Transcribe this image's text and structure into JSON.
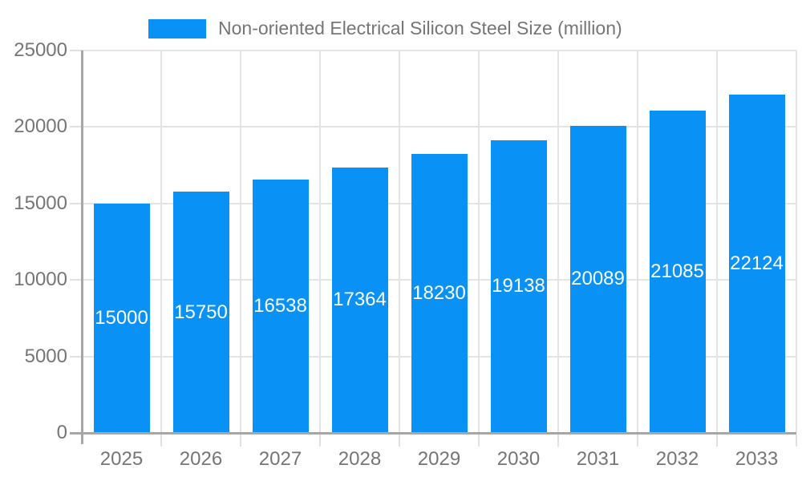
{
  "legend": {
    "label": "Non-oriented Electrical Silicon Steel Size (million)"
  },
  "colors": {
    "bar": "#0991f6",
    "axis": "#a6a6a6",
    "grid": "#e4e4e4",
    "tick": "#e0e0e0",
    "axis_text": "#757575",
    "value_label": "#ffffff",
    "background": "#ffffff"
  },
  "chart_data": {
    "type": "bar",
    "title": "",
    "xlabel": "",
    "ylabel": "",
    "series_name": "Non-oriented Electrical Silicon Steel Size (million)",
    "categories": [
      "2025",
      "2026",
      "2027",
      "2028",
      "2029",
      "2030",
      "2031",
      "2032",
      "2033"
    ],
    "values": [
      15000,
      15750,
      16538,
      17364,
      18230,
      19138,
      20089,
      21085,
      22124
    ],
    "ylim": [
      0,
      25000
    ],
    "yticks": [
      0,
      5000,
      10000,
      15000,
      20000,
      25000
    ],
    "ytick_labels": [
      "0",
      "5000",
      "10000",
      "15000",
      "20000",
      "25000"
    ],
    "grid": true,
    "legend_position": "top",
    "value_label_position": "inside-center"
  }
}
